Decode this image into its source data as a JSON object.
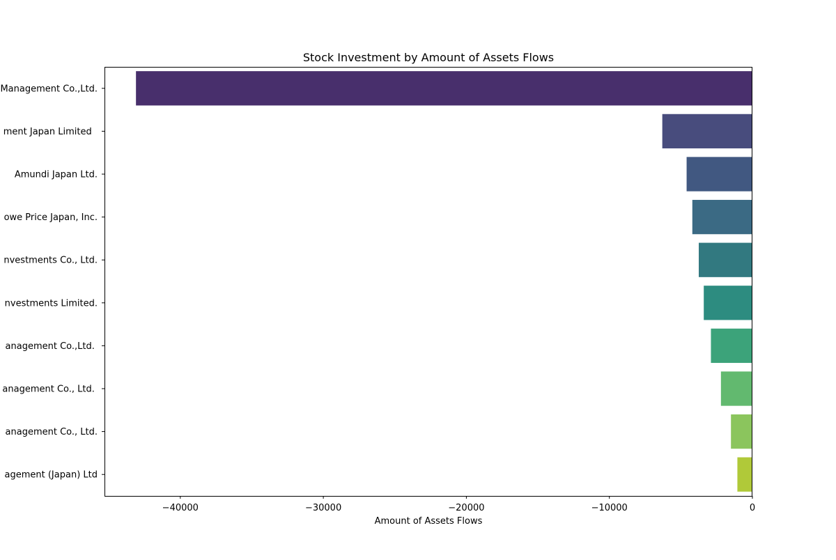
{
  "chart_data": {
    "type": "bar",
    "orientation": "horizontal",
    "title": "Stock Investment by Amount of Assets Flows",
    "xlabel": "Amount of Assets Flows",
    "ylabel": "",
    "categories": [
      "Management Co.,Ltd.",
      "ment Japan Limited  ",
      "Amundi Japan Ltd.",
      "owe Price Japan, Inc.",
      "nvestments Co., Ltd.",
      "nvestments Limited.",
      "anagement Co.,Ltd. ",
      "anagement Co., Ltd. ",
      "anagement Co., Ltd.",
      "agement (Japan) Ltd"
    ],
    "values": [
      -43100,
      -6300,
      -4600,
      -4200,
      -3750,
      -3400,
      -2900,
      -2200,
      -1500,
      -1050
    ],
    "colors": [
      "#482f6c",
      "#484c7d",
      "#415881",
      "#3b6a84",
      "#327980",
      "#2d8c80",
      "#3ca37a",
      "#62b96f",
      "#8bc55d",
      "#b0c939"
    ],
    "xlim": [
      -45300,
      0
    ],
    "xticks": [
      -40000,
      -30000,
      -20000,
      -10000,
      0
    ],
    "xtick_labels": [
      "−40000",
      "−30000",
      "−20000",
      "−10000",
      "0"
    ],
    "grid": false,
    "legend": null
  }
}
